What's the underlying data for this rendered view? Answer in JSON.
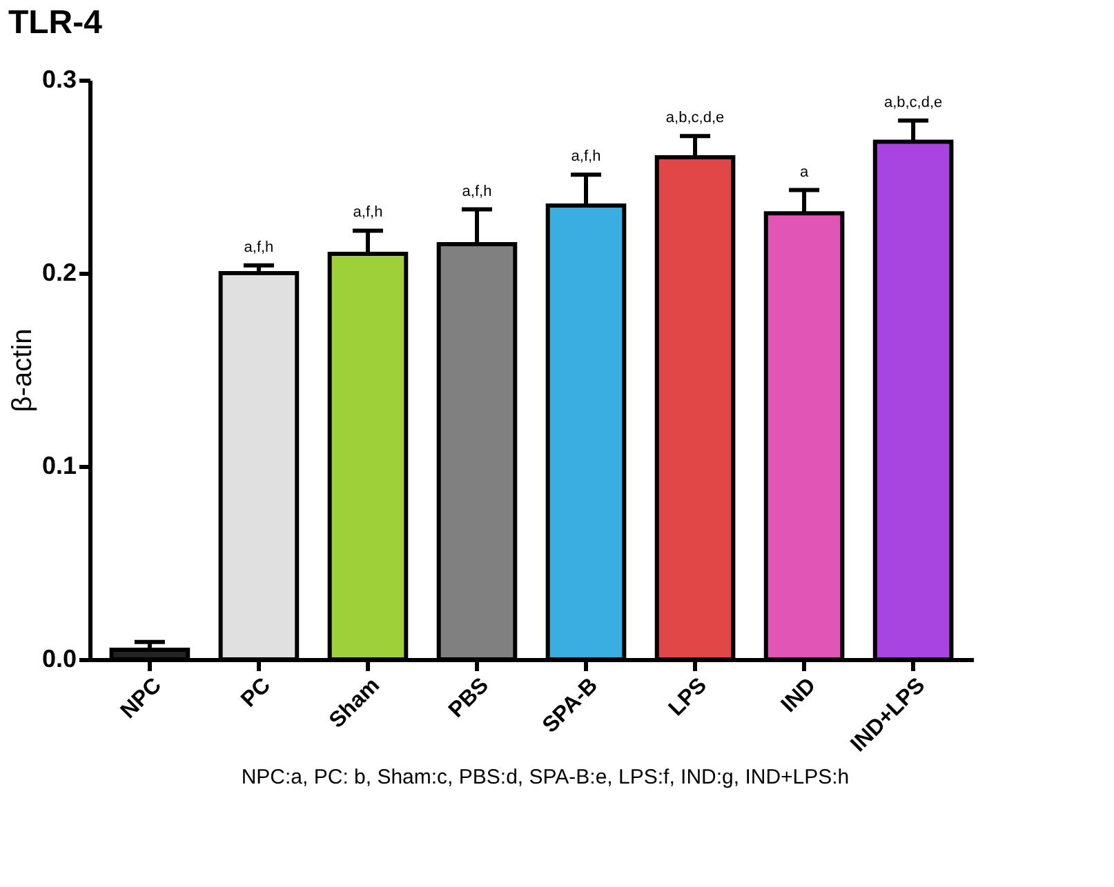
{
  "chart_data": {
    "type": "bar",
    "title": "TLR-4",
    "ylabel": "β-actin",
    "categories": [
      "NPC",
      "PC",
      "Sham",
      "PBS",
      "SPA-B",
      "LPS",
      "IND",
      "IND+LPS"
    ],
    "values": [
      0.005,
      0.2,
      0.21,
      0.215,
      0.235,
      0.26,
      0.231,
      0.268
    ],
    "colors": [
      "#222222",
      "#e0e0e0",
      "#9ed03a",
      "#808080",
      "#3aaee0",
      "#e04848",
      "#e055b5",
      "#a845e0"
    ],
    "errors": [
      [
        0.005,
        0.009
      ],
      [
        0.2,
        0.204
      ],
      [
        0.21,
        0.222
      ],
      [
        0.215,
        0.233
      ],
      [
        0.235,
        0.251
      ],
      [
        0.26,
        0.271
      ],
      [
        0.231,
        0.243
      ],
      [
        0.268,
        0.279
      ]
    ],
    "ylim": [
      0,
      0.3
    ],
    "yticks": [
      {
        "value": 0,
        "label": "0.0"
      },
      {
        "value": 0.1,
        "label": "0.1"
      },
      {
        "value": 0.2,
        "label": "0.2"
      },
      {
        "value": 0.3,
        "label": "0.3"
      }
    ],
    "grid": false,
    "legend": false,
    "annotations": [
      {
        "text": "a,f,h",
        "x": "PC",
        "y": 0.204
      },
      {
        "text": "a,f,h",
        "x": "Sham",
        "y": 0.222
      },
      {
        "text": "a,f,h",
        "x": "PBS",
        "y": 0.233
      },
      {
        "text": "a,f,h",
        "x": "SPA-B",
        "y": 0.251
      },
      {
        "text": "a,b,c,d,e",
        "x": "LPS",
        "y": 0.271
      },
      {
        "text": "a",
        "x": "IND",
        "y": 0.243
      },
      {
        "text": "a,b,c,d,e",
        "x": "IND+LPS",
        "y": 0.279
      },
      "NPC:a, PC: b, Sham:c, PBS:d, SPA-B:e, LPS:f, IND:g, IND+LPS:h"
    ]
  }
}
